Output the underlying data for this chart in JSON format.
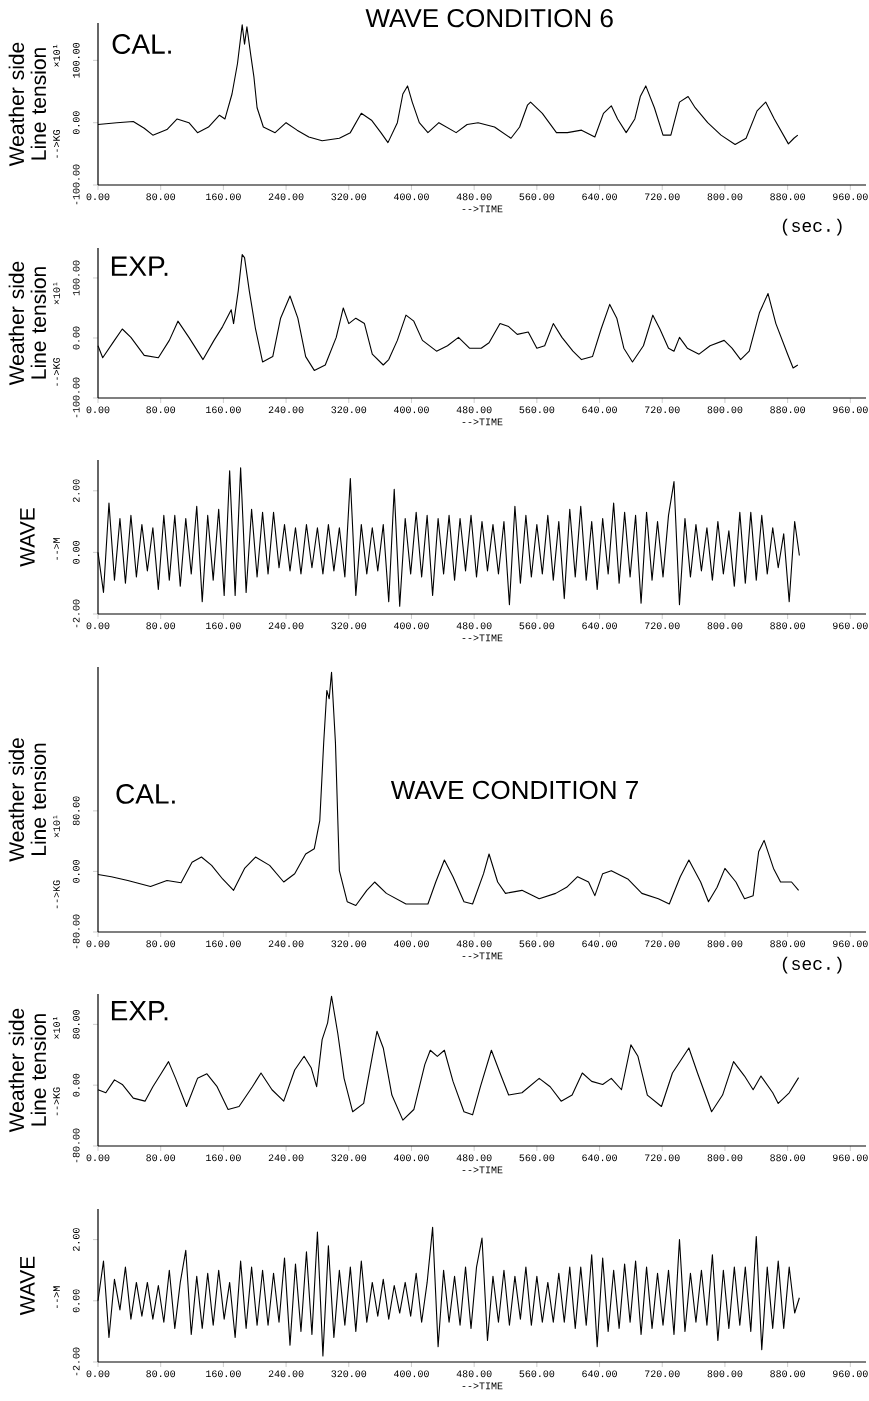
{
  "chart_data": [
    {
      "type": "line",
      "title": "WAVE CONDITION 6",
      "subtitle": "CAL.",
      "ylabel": "Weather side Line tension",
      "xlabel": "-->TIME",
      "annotations": [
        "-->KG",
        "×10¹",
        "(sec.)"
      ],
      "xlim": [
        0,
        980
      ],
      "ylim": [
        -100,
        160
      ],
      "xticks": [
        {
          "value": 0,
          "label": "0.00"
        },
        {
          "value": 80,
          "label": "80.00"
        },
        {
          "value": 160,
          "label": "160.00"
        },
        {
          "value": 240,
          "label": "240.00"
        },
        {
          "value": 320,
          "label": "320.00"
        },
        {
          "value": 400,
          "label": "400.00"
        },
        {
          "value": 480,
          "label": "480.00"
        },
        {
          "value": 560,
          "label": "560.00"
        },
        {
          "value": 640,
          "label": "640.00"
        },
        {
          "value": 720,
          "label": "720.00"
        },
        {
          "value": 800,
          "label": "800.00"
        },
        {
          "value": 880,
          "label": "880.00"
        },
        {
          "value": 960,
          "label": "960.00"
        }
      ],
      "yticks": [
        {
          "value": -100,
          "label": "-100.00"
        },
        {
          "value": 0,
          "label": "0.00"
        },
        {
          "value": 100,
          "label": "100.00"
        }
      ],
      "x": [
        0,
        24,
        45,
        59,
        70,
        88,
        101,
        116,
        127,
        141,
        155,
        162,
        171,
        178,
        184,
        187,
        190,
        195,
        199,
        203,
        211,
        226,
        240,
        254,
        269,
        286,
        308,
        322,
        336,
        349,
        361,
        370,
        382,
        389,
        395,
        401,
        410,
        421,
        435,
        457,
        471,
        485,
        506,
        527,
        538,
        548,
        552,
        567,
        585,
        599,
        617,
        634,
        645,
        655,
        663,
        674,
        685,
        692,
        699,
        710,
        721,
        731,
        742,
        753,
        762,
        778,
        795,
        813,
        827,
        841,
        852,
        863,
        881,
        888,
        893
      ],
      "series": [
        {
          "color": "#000000",
          "values": [
            -3,
            0,
            2,
            -9,
            -20,
            -11,
            6,
            0,
            -16,
            -7,
            12,
            6,
            46,
            95,
            157,
            126,
            154,
            108,
            73,
            24,
            -7,
            -16,
            0,
            -12,
            -23,
            -29,
            -25,
            -16,
            15,
            4,
            -16,
            -32,
            0,
            46,
            59,
            33,
            0,
            -16,
            0,
            -16,
            -3,
            0,
            -7,
            -25,
            -7,
            28,
            33,
            15,
            -16,
            -16,
            -12,
            -23,
            15,
            27,
            6,
            -16,
            6,
            42,
            59,
            24,
            -20,
            -20,
            33,
            42,
            24,
            0,
            -20,
            -35,
            -25,
            19,
            33,
            6,
            -34,
            -25,
            -20
          ]
        }
      ]
    },
    {
      "type": "line",
      "subtitle": "EXP.",
      "ylabel": "Weather side Line tension",
      "xlabel": "-->TIME",
      "annotations": [
        "-->KG",
        "×10¹"
      ],
      "xlim": [
        0,
        980
      ],
      "ylim": [
        -100,
        150
      ],
      "xticks": [
        {
          "value": 0,
          "label": "0.00"
        },
        {
          "value": 80,
          "label": "80.00"
        },
        {
          "value": 160,
          "label": "160.00"
        },
        {
          "value": 240,
          "label": "240.00"
        },
        {
          "value": 320,
          "label": "320.00"
        },
        {
          "value": 400,
          "label": "400.00"
        },
        {
          "value": 480,
          "label": "480.00"
        },
        {
          "value": 560,
          "label": "560.00"
        },
        {
          "value": 640,
          "label": "640.00"
        },
        {
          "value": 720,
          "label": "720.00"
        },
        {
          "value": 800,
          "label": "800.00"
        },
        {
          "value": 880,
          "label": "880.00"
        },
        {
          "value": 960,
          "label": "960.00"
        }
      ],
      "yticks": [
        {
          "value": -100,
          "label": "-100.00"
        },
        {
          "value": 0,
          "label": "0.00"
        },
        {
          "value": 100,
          "label": "100.00"
        }
      ],
      "x": [
        0,
        6,
        21,
        31,
        42,
        59,
        77,
        91,
        102,
        116,
        134,
        148,
        159,
        170,
        173,
        179,
        184,
        187,
        193,
        201,
        210,
        223,
        233,
        245,
        255,
        265,
        276,
        290,
        304,
        313,
        320,
        329,
        340,
        350,
        364,
        371,
        382,
        393,
        403,
        414,
        432,
        446,
        460,
        474,
        489,
        499,
        513,
        524,
        535,
        549,
        560,
        570,
        581,
        592,
        606,
        617,
        631,
        642,
        653,
        662,
        671,
        682,
        696,
        708,
        717,
        728,
        735,
        742,
        752,
        767,
        781,
        799,
        809,
        820,
        831,
        844,
        855,
        865,
        880,
        887,
        893
      ],
      "series": [
        {
          "color": "#000000",
          "values": [
            -13,
            -33,
            -4,
            15,
            1,
            -29,
            -33,
            -4,
            28,
            1,
            -36,
            -4,
            19,
            47,
            24,
            79,
            139,
            134,
            79,
            15,
            -40,
            -31,
            33,
            70,
            33,
            -31,
            -54,
            -45,
            1,
            50,
            24,
            33,
            24,
            -27,
            -45,
            -36,
            -4,
            38,
            28,
            -4,
            -22,
            -13,
            1,
            -17,
            -17,
            -8,
            24,
            19,
            6,
            10,
            -17,
            -13,
            24,
            1,
            -22,
            -36,
            -31,
            15,
            56,
            33,
            -17,
            -40,
            -13,
            38,
            15,
            -17,
            -22,
            1,
            -17,
            -27,
            -13,
            -4,
            -17,
            -36,
            -22,
            42,
            74,
            24,
            -27,
            -50,
            -45
          ]
        }
      ]
    },
    {
      "type": "line",
      "ylabel": "WAVE",
      "xlabel": "-->TIME",
      "annotations": [
        "-->M"
      ],
      "xlim": [
        0,
        980
      ],
      "ylim": [
        -2,
        3
      ],
      "xticks": [
        {
          "value": 0,
          "label": "0.00"
        },
        {
          "value": 80,
          "label": "80.00"
        },
        {
          "value": 160,
          "label": "160.00"
        },
        {
          "value": 240,
          "label": "240.00"
        },
        {
          "value": 320,
          "label": "320.00"
        },
        {
          "value": 400,
          "label": "400.00"
        },
        {
          "value": 480,
          "label": "480.00"
        },
        {
          "value": 560,
          "label": "560.00"
        },
        {
          "value": 640,
          "label": "640.00"
        },
        {
          "value": 720,
          "label": "720.00"
        },
        {
          "value": 800,
          "label": "800.00"
        },
        {
          "value": 880,
          "label": "880.00"
        },
        {
          "value": 960,
          "label": "960.00"
        }
      ],
      "yticks": [
        {
          "value": -2,
          "label": "-2.00"
        },
        {
          "value": 0,
          "label": "0.00"
        },
        {
          "value": 2,
          "label": "2.00"
        }
      ],
      "x": [
        0,
        7,
        14,
        21,
        28,
        35,
        42,
        49,
        56,
        63,
        70,
        77,
        84,
        91,
        98,
        105,
        112,
        119,
        126,
        133,
        140,
        147,
        154,
        161,
        168,
        175,
        182,
        189,
        196,
        203,
        210,
        217,
        224,
        231,
        238,
        245,
        252,
        259,
        266,
        273,
        280,
        287,
        294,
        301,
        308,
        315,
        322,
        329,
        336,
        343,
        350,
        357,
        364,
        371,
        378,
        385,
        392,
        399,
        406,
        413,
        420,
        427,
        434,
        441,
        448,
        455,
        462,
        469,
        476,
        483,
        490,
        497,
        504,
        511,
        518,
        525,
        532,
        539,
        546,
        553,
        560,
        567,
        574,
        581,
        588,
        595,
        602,
        609,
        616,
        623,
        630,
        637,
        644,
        651,
        658,
        665,
        672,
        679,
        686,
        693,
        700,
        707,
        714,
        721,
        728,
        735,
        742,
        749,
        756,
        763,
        770,
        777,
        784,
        791,
        798,
        805,
        812,
        819,
        826,
        833,
        840,
        847,
        854,
        861,
        868,
        875,
        882,
        889,
        895
      ],
      "series": [
        {
          "color": "#000000",
          "values": [
            0.0,
            -1.3,
            1.6,
            -0.9,
            1.1,
            -1.0,
            1.2,
            -0.8,
            0.9,
            -0.6,
            0.8,
            -1.2,
            1.2,
            -0.9,
            1.2,
            -1.1,
            1.1,
            -0.7,
            1.5,
            -1.6,
            1.2,
            -0.9,
            1.4,
            -1.4,
            2.65,
            -1.4,
            2.75,
            -1.3,
            1.4,
            -0.8,
            1.3,
            -0.7,
            1.3,
            -0.5,
            0.9,
            -0.6,
            0.8,
            -0.7,
            0.9,
            -0.5,
            0.8,
            -0.7,
            0.9,
            -0.6,
            0.8,
            -0.8,
            2.4,
            -1.4,
            0.9,
            -0.7,
            0.8,
            -0.6,
            0.9,
            -1.6,
            2.05,
            -1.75,
            1.1,
            -0.7,
            1.3,
            -0.8,
            1.2,
            -1.4,
            1.1,
            -0.7,
            1.2,
            -0.9,
            1.1,
            -0.6,
            1.2,
            -0.8,
            1.0,
            -0.6,
            0.9,
            -0.7,
            1.0,
            -1.7,
            1.5,
            -1.0,
            1.2,
            -0.8,
            0.9,
            -0.7,
            1.2,
            -0.9,
            1.0,
            -1.5,
            1.4,
            -0.8,
            1.5,
            -0.9,
            1.0,
            -1.2,
            1.1,
            -0.7,
            1.6,
            -1.0,
            1.3,
            -0.8,
            1.2,
            -1.65,
            1.3,
            -0.9,
            1.0,
            -0.8,
            1.2,
            2.3,
            -1.7,
            1.1,
            -0.8,
            0.9,
            -0.6,
            0.8,
            -0.9,
            1.0,
            -0.7,
            0.7,
            -1.1,
            1.3,
            -1.0,
            1.3,
            -0.9,
            1.2,
            -0.7,
            0.8,
            -0.5,
            0.6,
            -1.6,
            1.0,
            -0.1
          ]
        }
      ]
    },
    {
      "type": "line",
      "title": "WAVE CONDITION 7",
      "subtitle": "CAL.",
      "ylabel": "Weather side Line tension",
      "xlabel": "-->TIME",
      "annotations": [
        "-->KG",
        "×10¹",
        "(sec.)"
      ],
      "xlim": [
        0,
        980
      ],
      "ylim": [
        -80,
        270
      ],
      "xticks": [
        {
          "value": 0,
          "label": "0.00"
        },
        {
          "value": 80,
          "label": "80.00"
        },
        {
          "value": 160,
          "label": "160.00"
        },
        {
          "value": 240,
          "label": "240.00"
        },
        {
          "value": 320,
          "label": "320.00"
        },
        {
          "value": 400,
          "label": "400.00"
        },
        {
          "value": 480,
          "label": "480.00"
        },
        {
          "value": 560,
          "label": "560.00"
        },
        {
          "value": 640,
          "label": "640.00"
        },
        {
          "value": 720,
          "label": "720.00"
        },
        {
          "value": 800,
          "label": "800.00"
        },
        {
          "value": 880,
          "label": "880.00"
        },
        {
          "value": 960,
          "label": "960.00"
        }
      ],
      "yticks": [
        {
          "value": -80,
          "label": "-80.00"
        },
        {
          "value": 0,
          "label": "0.00"
        },
        {
          "value": 80,
          "label": "80.00"
        }
      ],
      "x": [
        0,
        17,
        38,
        67,
        88,
        106,
        120,
        132,
        145,
        159,
        173,
        187,
        201,
        219,
        237,
        251,
        265,
        276,
        283,
        288,
        292,
        295,
        298,
        303,
        308,
        318,
        329,
        343,
        353,
        368,
        393,
        421,
        431,
        442,
        453,
        467,
        478,
        492,
        499,
        510,
        520,
        541,
        563,
        584,
        598,
        612,
        626,
        634,
        644,
        655,
        676,
        694,
        715,
        729,
        743,
        754,
        769,
        779,
        790,
        800,
        814,
        825,
        836,
        843,
        850,
        862,
        871,
        885,
        894
      ],
      "series": [
        {
          "color": "#000000",
          "values": [
            -4,
            -7,
            -12,
            -20,
            -12,
            -15,
            12,
            19,
            8,
            -10,
            -25,
            4,
            19,
            8,
            -14,
            -3,
            23,
            30,
            67,
            170,
            239,
            228,
            263,
            170,
            1,
            -40,
            -45,
            -25,
            -14,
            -29,
            -43,
            -43,
            -14,
            15,
            -7,
            -40,
            -43,
            -3,
            23,
            -14,
            -29,
            -25,
            -36,
            -29,
            -21,
            -7,
            -14,
            -32,
            -3,
            1,
            -10,
            -29,
            -36,
            -43,
            -7,
            15,
            -14,
            -40,
            -21,
            4,
            -14,
            -36,
            -32,
            26,
            41,
            4,
            -14,
            -14,
            -25
          ]
        }
      ]
    },
    {
      "type": "line",
      "subtitle": "EXP.",
      "ylabel": "Weather side Line tension",
      "xlabel": "-->TIME",
      "annotations": [
        "-->KG",
        "×10¹"
      ],
      "xlim": [
        0,
        980
      ],
      "ylim": [
        -80,
        120
      ],
      "xticks": [
        {
          "value": 0,
          "label": "0.00"
        },
        {
          "value": 80,
          "label": "80.00"
        },
        {
          "value": 160,
          "label": "160.00"
        },
        {
          "value": 240,
          "label": "240.00"
        },
        {
          "value": 320,
          "label": "320.00"
        },
        {
          "value": 400,
          "label": "400.00"
        },
        {
          "value": 480,
          "label": "480.00"
        },
        {
          "value": 560,
          "label": "560.00"
        },
        {
          "value": 640,
          "label": "640.00"
        },
        {
          "value": 720,
          "label": "720.00"
        },
        {
          "value": 800,
          "label": "800.00"
        },
        {
          "value": 880,
          "label": "880.00"
        },
        {
          "value": 960,
          "label": "960.00"
        }
      ],
      "yticks": [
        {
          "value": -80,
          "label": "-80.00"
        },
        {
          "value": 0,
          "label": "0.00"
        },
        {
          "value": 80,
          "label": "80.00"
        }
      ],
      "x": [
        0,
        10,
        21,
        31,
        45,
        60,
        70,
        81,
        90,
        99,
        113,
        127,
        139,
        152,
        166,
        180,
        197,
        208,
        222,
        237,
        251,
        263,
        272,
        279,
        286,
        293,
        298,
        306,
        314,
        325,
        339,
        350,
        356,
        364,
        375,
        389,
        403,
        417,
        424,
        433,
        442,
        453,
        467,
        478,
        488,
        502,
        513,
        524,
        541,
        563,
        577,
        591,
        605,
        618,
        630,
        644,
        655,
        668,
        680,
        689,
        701,
        719,
        733,
        754,
        765,
        783,
        797,
        811,
        825,
        836,
        846,
        861,
        868,
        882,
        894
      ],
      "series": [
        {
          "color": "#000000",
          "values": [
            -6,
            -10,
            7,
            1,
            -17,
            -21,
            -2,
            16,
            31,
            9,
            -28,
            9,
            15,
            -2,
            -32,
            -28,
            -2,
            16,
            -6,
            -21,
            20,
            38,
            23,
            -2,
            60,
            82,
            117,
            68,
            9,
            -35,
            -24,
            38,
            71,
            49,
            -13,
            -46,
            -32,
            27,
            46,
            38,
            46,
            5,
            -35,
            -39,
            -2,
            46,
            16,
            -13,
            -10,
            9,
            -2,
            -21,
            -13,
            16,
            5,
            1,
            9,
            -6,
            53,
            38,
            -13,
            -28,
            16,
            49,
            16,
            -35,
            -13,
            31,
            12,
            -6,
            12,
            -10,
            -24,
            -10,
            10
          ]
        }
      ]
    },
    {
      "type": "line",
      "ylabel": "WAVE",
      "xlabel": "-->TIME",
      "annotations": [
        "-->M"
      ],
      "xlim": [
        0,
        980
      ],
      "ylim": [
        -2,
        3
      ],
      "xticks": [
        {
          "value": 0,
          "label": "0.00"
        },
        {
          "value": 80,
          "label": "80.00"
        },
        {
          "value": 160,
          "label": "160.00"
        },
        {
          "value": 240,
          "label": "240.00"
        },
        {
          "value": 320,
          "label": "320.00"
        },
        {
          "value": 400,
          "label": "400.00"
        },
        {
          "value": 480,
          "label": "480.00"
        },
        {
          "value": 560,
          "label": "560.00"
        },
        {
          "value": 640,
          "label": "640.00"
        },
        {
          "value": 720,
          "label": "720.00"
        },
        {
          "value": 800,
          "label": "800.00"
        },
        {
          "value": 880,
          "label": "880.00"
        },
        {
          "value": 960,
          "label": "960.00"
        }
      ],
      "yticks": [
        {
          "value": -2,
          "label": "-2.00"
        },
        {
          "value": 0,
          "label": "0.00"
        },
        {
          "value": 2,
          "label": "2.00"
        }
      ],
      "x": [
        0,
        7,
        14,
        21,
        28,
        35,
        42,
        49,
        56,
        63,
        70,
        77,
        84,
        91,
        98,
        105,
        112,
        119,
        126,
        133,
        140,
        147,
        154,
        161,
        168,
        175,
        182,
        189,
        196,
        203,
        210,
        217,
        224,
        231,
        238,
        245,
        252,
        259,
        266,
        273,
        280,
        287,
        294,
        301,
        308,
        315,
        322,
        329,
        336,
        343,
        350,
        357,
        364,
        371,
        378,
        385,
        392,
        399,
        406,
        413,
        420,
        427,
        434,
        441,
        448,
        455,
        462,
        469,
        476,
        483,
        490,
        497,
        504,
        511,
        518,
        525,
        532,
        539,
        546,
        553,
        560,
        567,
        574,
        581,
        588,
        595,
        602,
        609,
        616,
        623,
        630,
        637,
        644,
        651,
        658,
        665,
        672,
        679,
        686,
        693,
        700,
        707,
        714,
        721,
        728,
        735,
        742,
        749,
        756,
        763,
        770,
        777,
        784,
        791,
        798,
        805,
        812,
        819,
        826,
        833,
        840,
        847,
        854,
        861,
        868,
        875,
        882,
        889,
        895
      ],
      "series": [
        {
          "color": "#000000",
          "values": [
            0.0,
            1.3,
            -1.2,
            0.7,
            -0.3,
            1.1,
            -0.6,
            0.6,
            -0.5,
            0.6,
            -0.6,
            0.5,
            -0.7,
            1.0,
            -0.9,
            0.6,
            1.65,
            -1.1,
            0.8,
            -0.9,
            0.9,
            -0.8,
            1.0,
            -0.6,
            0.6,
            -1.2,
            1.3,
            -0.9,
            1.1,
            -0.8,
            1.0,
            -0.8,
            0.9,
            -0.7,
            1.4,
            -1.45,
            1.2,
            -1.0,
            1.6,
            -1.1,
            2.25,
            -1.8,
            1.8,
            -1.2,
            1.0,
            -0.8,
            1.1,
            -1.0,
            1.3,
            -0.7,
            0.6,
            -0.5,
            0.7,
            -0.6,
            0.5,
            -0.4,
            0.6,
            -0.5,
            0.9,
            -0.7,
            0.6,
            2.4,
            -1.5,
            1.0,
            -0.7,
            0.8,
            -0.8,
            1.1,
            -0.9,
            1.1,
            2.05,
            -1.3,
            0.8,
            -0.7,
            1.0,
            -0.8,
            0.8,
            -0.6,
            1.1,
            -0.8,
            0.8,
            -0.7,
            0.6,
            -0.7,
            0.9,
            -0.7,
            1.1,
            -0.9,
            1.1,
            -0.8,
            1.5,
            -1.5,
            1.4,
            -1.0,
            1.0,
            -0.9,
            1.2,
            -0.7,
            1.3,
            -1.1,
            1.1,
            -0.9,
            0.9,
            -0.8,
            1.0,
            -1.1,
            2.0,
            -1.0,
            0.9,
            -0.7,
            1.0,
            -0.8,
            1.5,
            -1.3,
            1.0,
            -0.9,
            1.1,
            -0.8,
            1.1,
            -1.0,
            2.1,
            -1.6,
            1.1,
            -0.9,
            1.3,
            -0.9,
            1.1,
            -0.4,
            0.1
          ]
        }
      ]
    }
  ]
}
